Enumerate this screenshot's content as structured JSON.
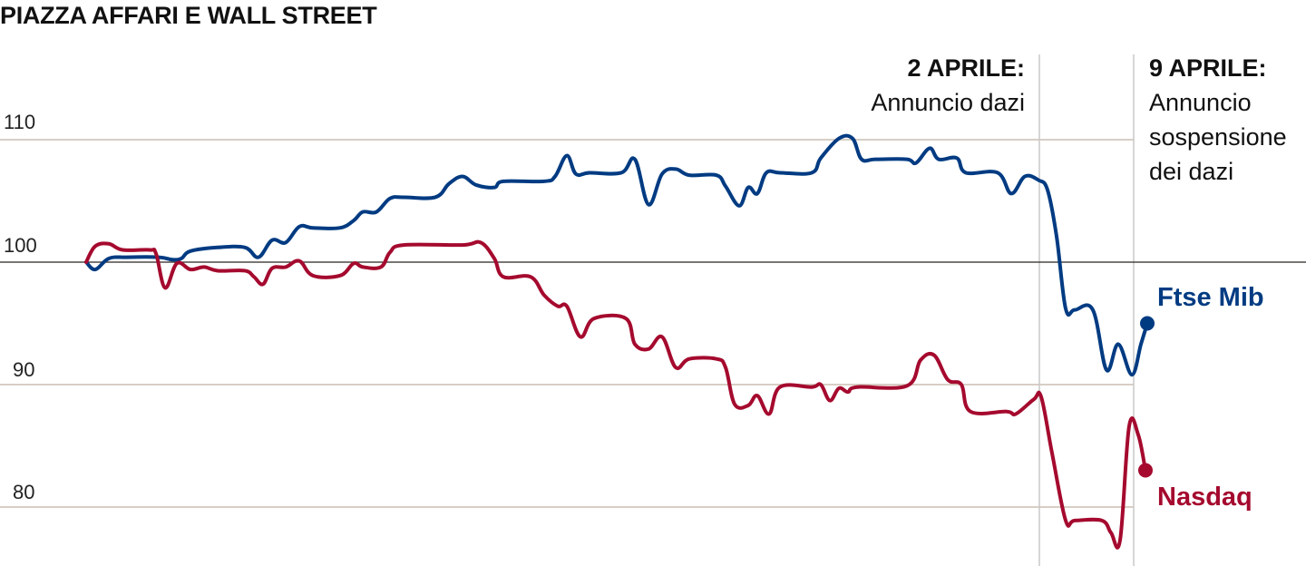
{
  "chart_data": {
    "type": "line",
    "title": "PIAZZA AFFARI E WALL STREET",
    "xlabel": "",
    "ylabel": "",
    "ylim": [
      76,
      114
    ],
    "xlim": [
      0,
      117
    ],
    "yticks": [
      80,
      90,
      100,
      110
    ],
    "ytick_labels": [
      "80",
      "90",
      "100",
      "110"
    ],
    "baseline": 100,
    "grid": true,
    "annotations": [
      {
        "x": 105.1,
        "title": "2 APRILE:",
        "text": [
          "Annuncio dazi"
        ]
      },
      {
        "x": 115.5,
        "title": "9 APRILE:",
        "text": [
          "Annuncio",
          "sospensione",
          "dei dazi"
        ]
      }
    ],
    "series": [
      {
        "name": "Ftse Mib",
        "color": "#003b82",
        "x": [
          0,
          1,
          2.5,
          4.5,
          8,
          9.5,
          10.5,
          11.5,
          14.5,
          17.5,
          19,
          20.5,
          22,
          23.5,
          25,
          28,
          29.5,
          30.5,
          32,
          33.5,
          35,
          38.5,
          40,
          41.5,
          43,
          45,
          46,
          50.5,
          51.7,
          53,
          54,
          55.5,
          59,
          60.5,
          62,
          63.5,
          65,
          66.5,
          69.5,
          70.5,
          72,
          73,
          74,
          75,
          76.5,
          80,
          81,
          83,
          84.5,
          85.5,
          87,
          90.5,
          91.5,
          93,
          94,
          96,
          97,
          100.5,
          102,
          103.5,
          105,
          106,
          107,
          108,
          109,
          111,
          112.5,
          113.8,
          115.3,
          116.3,
          117
        ],
        "values": [
          100.0,
          99.4,
          100.3,
          100.4,
          100.4,
          100.2,
          100.3,
          100.9,
          101.2,
          101.2,
          100.4,
          101.8,
          101.6,
          102.9,
          102.8,
          102.8,
          103.4,
          104.1,
          104.1,
          105.2,
          105.3,
          105.3,
          106.4,
          107.0,
          106.3,
          106.1,
          106.6,
          106.6,
          107.0,
          108.7,
          107.2,
          107.3,
          107.3,
          108.4,
          104.7,
          107.2,
          107.6,
          107.1,
          107.1,
          106.2,
          104.6,
          106.1,
          105.6,
          107.3,
          107.3,
          107.3,
          108.5,
          110.1,
          110.1,
          108.4,
          108.4,
          108.4,
          108.1,
          109.3,
          108.4,
          108.5,
          107.3,
          107.3,
          105.6,
          107.0,
          106.7,
          105.9,
          102.1,
          96.2,
          96.1,
          96.1,
          91.2,
          93.3,
          90.8,
          93.3,
          95.0
        ]
      },
      {
        "name": "Nasdaq",
        "color": "#a50a2e",
        "x": [
          0,
          1,
          2.5,
          4,
          7,
          7.7,
          8.7,
          10,
          11.5,
          13,
          14.5,
          17.5,
          18.5,
          19.5,
          20.5,
          22,
          23.5,
          25,
          28,
          29.5,
          30.5,
          32.5,
          33.5,
          35,
          41.5,
          43.5,
          45,
          46,
          49,
          50.5,
          52,
          53,
          54.5,
          56,
          59.5,
          60.5,
          62,
          63.5,
          65,
          66.5,
          69.5,
          70.5,
          71.5,
          73,
          74,
          75.3,
          76.5,
          80,
          81,
          82,
          83,
          84,
          85,
          90.5,
          92,
          93.5,
          95,
          96.5,
          97.5,
          101.5,
          102.5,
          104.5,
          105.3,
          106.5,
          108,
          109,
          112,
          113,
          114,
          115,
          116,
          116.8
        ],
        "values": [
          100.0,
          101.3,
          101.5,
          101.0,
          101.0,
          100.7,
          97.9,
          99.9,
          99.4,
          99.6,
          99.3,
          99.3,
          98.8,
          98.2,
          99.5,
          99.6,
          100.1,
          98.9,
          98.9,
          99.9,
          99.6,
          99.6,
          100.8,
          101.4,
          101.4,
          101.6,
          100.3,
          98.8,
          98.8,
          97.3,
          96.4,
          96.4,
          93.9,
          95.4,
          95.4,
          93.3,
          92.9,
          93.9,
          91.4,
          92.1,
          92.1,
          91.4,
          88.4,
          88.3,
          89.1,
          87.6,
          89.8,
          89.8,
          90.0,
          88.7,
          89.7,
          89.4,
          89.8,
          89.9,
          92.0,
          92.4,
          90.4,
          90.0,
          87.8,
          87.8,
          87.6,
          88.8,
          89.0,
          84.4,
          78.9,
          78.9,
          78.9,
          77.9,
          77.3,
          86.6,
          85.9,
          83.0
        ]
      }
    ]
  }
}
